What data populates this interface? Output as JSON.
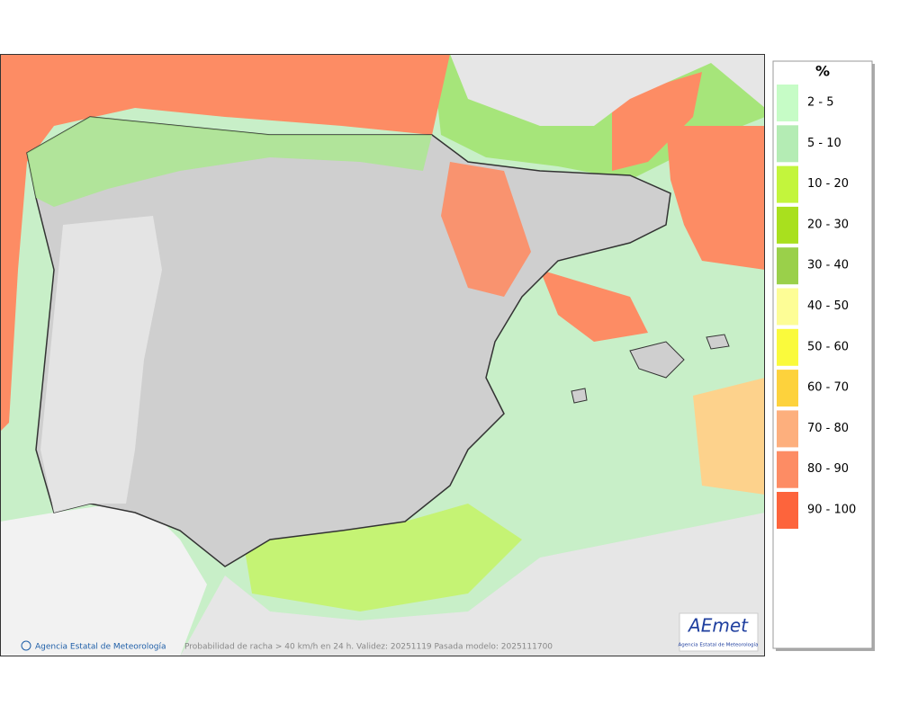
{
  "legend": {
    "title": "%",
    "items": [
      {
        "label": "2 - 5",
        "color": "#c6fcc6"
      },
      {
        "label": "5 - 10",
        "color": "#b4ecb4"
      },
      {
        "label": "10 - 20",
        "color": "#c3f53c"
      },
      {
        "label": "20 - 30",
        "color": "#a9e01e"
      },
      {
        "label": "30 - 40",
        "color": "#9ad04a"
      },
      {
        "label": "40 - 50",
        "color": "#fdfd96"
      },
      {
        "label": "50 - 60",
        "color": "#fafa3c"
      },
      {
        "label": "60 - 70",
        "color": "#fdd23c"
      },
      {
        "label": "70 - 80",
        "color": "#fdaf7d"
      },
      {
        "label": "80 - 90",
        "color": "#fd8c64"
      },
      {
        "label": "90 - 100",
        "color": "#fd643c"
      }
    ]
  },
  "footer": {
    "credit": "Agencia Estatal de Meteorología",
    "caption": "Probabilidad de racha > 40 km/h en 24 h. Validez: 20251119 Pasada modelo: 2025111700"
  },
  "logo": {
    "name": "AEmet",
    "subtitle": "Agencia Estatal de Meteorología"
  }
}
